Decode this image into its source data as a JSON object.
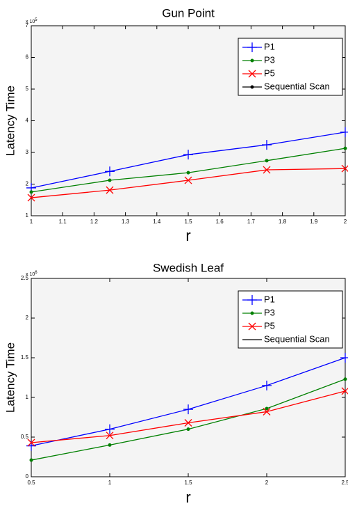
{
  "chart_data": [
    {
      "type": "line",
      "title": "Gun Point",
      "x_label": "r",
      "y_label": "Latency Time",
      "y_multiplier": "x 10",
      "y_multiplier_exponent": "5",
      "x": [
        1,
        1.25,
        1.5,
        1.75,
        2
      ],
      "xlim": [
        1,
        2
      ],
      "xticks": [
        1,
        1.1,
        1.2,
        1.3,
        1.4,
        1.5,
        1.6,
        1.7,
        1.8,
        1.9,
        2
      ],
      "ylim": [
        1,
        7
      ],
      "yticks": [
        1,
        2,
        3,
        4,
        5,
        6,
        7
      ],
      "grid": false,
      "legend": "upper right",
      "series": [
        {
          "name": "P1",
          "color": "#0000ff",
          "marker": "plus",
          "values": [
            1.88,
            2.4,
            2.93,
            3.24,
            3.64
          ]
        },
        {
          "name": "P3",
          "color": "#008000",
          "marker": "dot",
          "values": [
            1.75,
            2.12,
            2.36,
            2.74,
            3.13
          ]
        },
        {
          "name": "P5",
          "color": "#ff0000",
          "marker": "cross",
          "values": [
            1.57,
            1.81,
            2.12,
            2.45,
            2.49
          ]
        },
        {
          "name": "Sequential Scan",
          "color": "#000000",
          "marker": "dot",
          "values": [
            null,
            null,
            null,
            null,
            null
          ]
        }
      ]
    },
    {
      "type": "line",
      "title": "Swedish Leaf",
      "x_label": "r",
      "y_label": "Latency Time",
      "y_multiplier": "x 10",
      "y_multiplier_exponent": "6",
      "x": [
        0.5,
        1,
        1.5,
        2,
        2.5
      ],
      "xlim": [
        0.5,
        2.5
      ],
      "xticks": [
        0.5,
        1,
        1.5,
        2,
        2.5
      ],
      "ylim": [
        0,
        2.5
      ],
      "yticks": [
        0,
        0.5,
        1,
        1.5,
        2,
        2.5
      ],
      "grid": false,
      "legend": "upper right",
      "series": [
        {
          "name": "P1",
          "color": "#0000ff",
          "marker": "plus",
          "values": [
            0.39,
            0.6,
            0.85,
            1.15,
            1.5
          ]
        },
        {
          "name": "P3",
          "color": "#008000",
          "marker": "dot",
          "values": [
            0.21,
            0.4,
            0.6,
            0.86,
            1.23
          ]
        },
        {
          "name": "P5",
          "color": "#ff0000",
          "marker": "cross",
          "values": [
            0.43,
            0.52,
            0.68,
            0.82,
            1.08
          ]
        },
        {
          "name": "Sequential Scan",
          "color": "#000000",
          "marker": "none",
          "values": [
            null,
            null,
            null,
            null,
            null
          ]
        }
      ]
    }
  ]
}
